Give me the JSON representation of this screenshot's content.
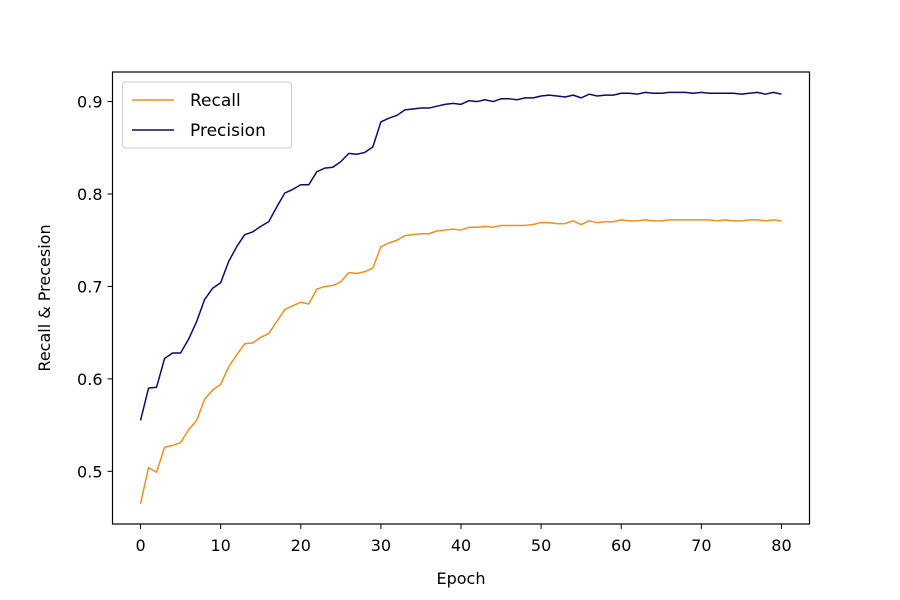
{
  "chart_data": {
    "type": "line",
    "title": "",
    "xlabel": "Epoch",
    "ylabel": "Recall & Precesion",
    "xlim": [
      -3.5,
      83.5
    ],
    "ylim": [
      0.443,
      0.932
    ],
    "xticks": [
      0,
      10,
      20,
      30,
      40,
      50,
      60,
      70,
      80
    ],
    "xtick_labels": [
      "0",
      "10",
      "20",
      "30",
      "40",
      "50",
      "60",
      "70",
      "80"
    ],
    "yticks": [
      0.5,
      0.6,
      0.7,
      0.8,
      0.9
    ],
    "ytick_labels": [
      "0.5",
      "0.6",
      "0.7",
      "0.8",
      "0.9"
    ],
    "grid": false,
    "legend_position": "top-left",
    "x": [
      0,
      1,
      2,
      3,
      4,
      5,
      6,
      7,
      8,
      9,
      10,
      11,
      12,
      13,
      14,
      15,
      16,
      17,
      18,
      19,
      20,
      21,
      22,
      23,
      24,
      25,
      26,
      27,
      28,
      29,
      30,
      31,
      32,
      33,
      34,
      35,
      36,
      37,
      38,
      39,
      40,
      41,
      42,
      43,
      44,
      45,
      46,
      47,
      48,
      49,
      50,
      51,
      52,
      53,
      54,
      55,
      56,
      57,
      58,
      59,
      60,
      61,
      62,
      63,
      64,
      65,
      66,
      67,
      68,
      69,
      70,
      71,
      72,
      73,
      74,
      75,
      76,
      77,
      78,
      79,
      80
    ],
    "series": [
      {
        "name": "Recall",
        "color": "#f28e1c",
        "values": [
          0.465,
          0.504,
          0.499,
          0.526,
          0.528,
          0.531,
          0.545,
          0.555,
          0.578,
          0.588,
          0.594,
          0.613,
          0.626,
          0.638,
          0.639,
          0.645,
          0.649,
          0.662,
          0.675,
          0.679,
          0.683,
          0.681,
          0.697,
          0.7,
          0.701,
          0.705,
          0.715,
          0.714,
          0.716,
          0.72,
          0.743,
          0.747,
          0.75,
          0.755,
          0.756,
          0.757,
          0.757,
          0.76,
          0.761,
          0.762,
          0.761,
          0.764,
          0.764,
          0.765,
          0.764,
          0.766,
          0.766,
          0.766,
          0.766,
          0.767,
          0.769,
          0.769,
          0.768,
          0.768,
          0.771,
          0.767,
          0.771,
          0.769,
          0.77,
          0.77,
          0.772,
          0.771,
          0.771,
          0.772,
          0.771,
          0.771,
          0.772,
          0.772,
          0.772,
          0.772,
          0.772,
          0.772,
          0.771,
          0.772,
          0.771,
          0.771,
          0.772,
          0.772,
          0.771,
          0.772,
          0.771
        ]
      },
      {
        "name": "Precision",
        "color": "#0b0b6b",
        "values": [
          0.555,
          0.59,
          0.591,
          0.622,
          0.628,
          0.628,
          0.643,
          0.662,
          0.686,
          0.698,
          0.704,
          0.727,
          0.743,
          0.756,
          0.759,
          0.765,
          0.77,
          0.786,
          0.801,
          0.805,
          0.81,
          0.81,
          0.824,
          0.828,
          0.829,
          0.835,
          0.844,
          0.843,
          0.845,
          0.851,
          0.878,
          0.882,
          0.885,
          0.891,
          0.892,
          0.893,
          0.893,
          0.895,
          0.897,
          0.898,
          0.897,
          0.901,
          0.9,
          0.902,
          0.9,
          0.903,
          0.903,
          0.902,
          0.904,
          0.904,
          0.906,
          0.907,
          0.906,
          0.905,
          0.907,
          0.904,
          0.908,
          0.906,
          0.907,
          0.907,
          0.909,
          0.909,
          0.908,
          0.91,
          0.909,
          0.909,
          0.91,
          0.91,
          0.91,
          0.909,
          0.91,
          0.909,
          0.909,
          0.909,
          0.909,
          0.908,
          0.909,
          0.91,
          0.908,
          0.91,
          0.908
        ]
      }
    ]
  }
}
